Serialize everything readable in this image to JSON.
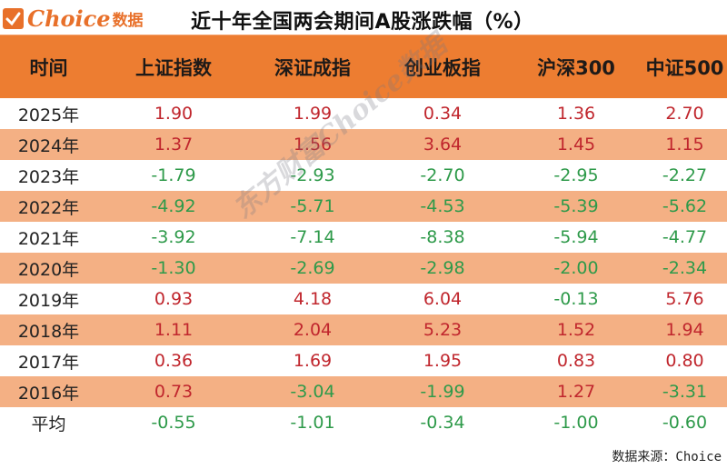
{
  "brand": {
    "logo_text": "Choice",
    "logo_cn": "数据",
    "icon": "checkmark-box-icon",
    "accent_color": "#ed7d31"
  },
  "title": "近十年全国两会期间A股涨跌幅（%）",
  "table": {
    "headers": [
      "时间",
      "上证指数",
      "深证成指",
      "创业板指",
      "沪深300",
      "中证500"
    ],
    "rows": [
      {
        "label": "2025年",
        "values": [
          "1.90",
          "1.99",
          "0.34",
          "1.36",
          "2.70"
        ]
      },
      {
        "label": "2024年",
        "values": [
          "1.37",
          "1.56",
          "3.64",
          "1.45",
          "1.15"
        ]
      },
      {
        "label": "2023年",
        "values": [
          "-1.79",
          "-2.93",
          "-2.70",
          "-2.95",
          "-2.27"
        ]
      },
      {
        "label": "2022年",
        "values": [
          "-4.92",
          "-5.71",
          "-4.53",
          "-5.39",
          "-5.62"
        ]
      },
      {
        "label": "2021年",
        "values": [
          "-3.92",
          "-7.14",
          "-8.38",
          "-5.94",
          "-4.77"
        ]
      },
      {
        "label": "2020年",
        "values": [
          "-1.30",
          "-2.69",
          "-2.98",
          "-2.00",
          "-2.34"
        ]
      },
      {
        "label": "2019年",
        "values": [
          "0.93",
          "4.18",
          "6.04",
          "-0.13",
          "5.76"
        ]
      },
      {
        "label": "2018年",
        "values": [
          "1.11",
          "2.04",
          "5.23",
          "1.52",
          "1.94"
        ]
      },
      {
        "label": "2017年",
        "values": [
          "0.36",
          "1.69",
          "1.95",
          "0.83",
          "0.80"
        ]
      },
      {
        "label": "2016年",
        "values": [
          "0.73",
          "-3.04",
          "-1.99",
          "1.27",
          "-3.31"
        ]
      },
      {
        "label": "平均",
        "values": [
          "-0.55",
          "-1.01",
          "-0.34",
          "-1.00",
          "-0.60"
        ]
      }
    ],
    "colors": {
      "header_bg": "#ed7d31",
      "stripe_bg": "#f4b084",
      "positive": "#c0262d",
      "negative": "#2e9a4a"
    }
  },
  "watermark": "东方财富Choice数据",
  "footer": "数据来源：Choice"
}
